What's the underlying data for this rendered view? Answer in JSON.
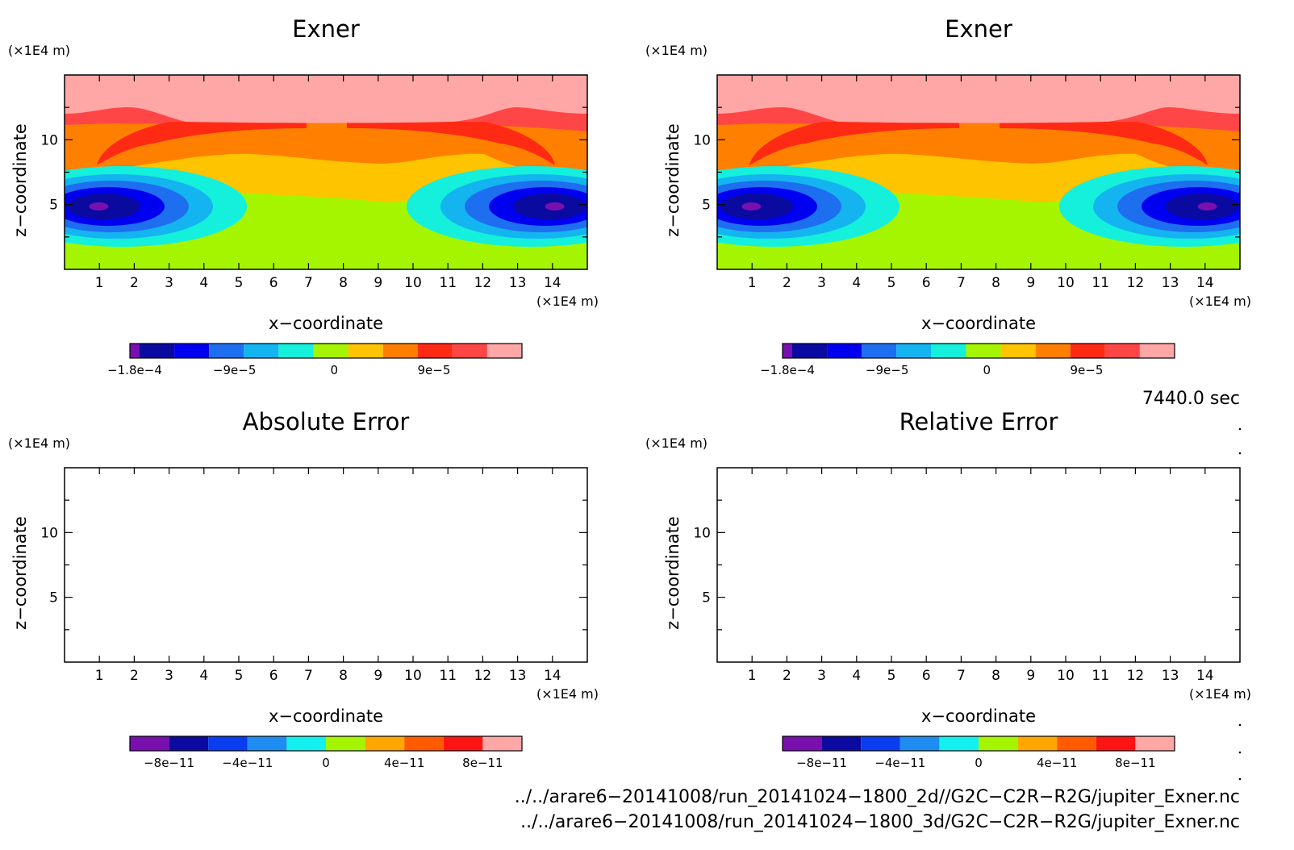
{
  "chart_data": [
    {
      "type": "heatmap",
      "title": "Exner",
      "xlabel": "x−coordinate",
      "ylabel": "z−coordinate",
      "x_unit": "(×1E4 m)",
      "y_unit": "(×1E4 m)",
      "xlim": [
        0,
        15
      ],
      "ylim": [
        0,
        15
      ],
      "x_ticks": [
        "1",
        "2",
        "3",
        "4",
        "5",
        "6",
        "7",
        "8",
        "9",
        "10",
        "11",
        "12",
        "13",
        "14"
      ],
      "y_ticks": [
        "5",
        "10"
      ],
      "colorbar": {
        "range": [
          -0.00018,
          0.000165
        ],
        "tick_labels": [
          "−1.8e−4",
          "−9e−5",
          "0",
          "9e−5"
        ],
        "tick_values": [
          -0.00018,
          -9e-05,
          0,
          9e-05
        ],
        "colors": [
          "#7a0fb0",
          "#0a0aa0",
          "#0000f0",
          "#1e6ef0",
          "#14b4f0",
          "#14f0dc",
          "#a6f500",
          "#ffc400",
          "#ff8000",
          "#ff2a14",
          "#ff4646",
          "#ffa6a6"
        ]
      },
      "field_layers": [
        {
          "level": "top",
          "color": "#ffa6a6"
        },
        {
          "level": "upper",
          "color": "#ff4646"
        },
        {
          "level": "upper-mid",
          "color": "#ff2a14"
        },
        {
          "level": "mid",
          "color": "#ff8000"
        },
        {
          "level": "lower-mid",
          "color": "#ffc400"
        },
        {
          "level": "low",
          "color": "#a6f500"
        },
        {
          "level": "vortex",
          "colors": [
            "#14f0dc",
            "#14b4f0",
            "#1e6ef0",
            "#0000f0",
            "#0a0aa0",
            "#7a0fb0"
          ]
        }
      ]
    },
    {
      "type": "heatmap",
      "title": "Exner",
      "xlabel": "x−coordinate",
      "ylabel": "z−coordinate",
      "x_unit": "(×1E4 m)",
      "y_unit": "(×1E4 m)",
      "xlim": [
        0,
        15
      ],
      "ylim": [
        0,
        15
      ],
      "x_ticks": [
        "1",
        "2",
        "3",
        "4",
        "5",
        "6",
        "7",
        "8",
        "9",
        "10",
        "11",
        "12",
        "13",
        "14"
      ],
      "y_ticks": [
        "5",
        "10"
      ],
      "colorbar": {
        "range": [
          -0.00018,
          0.000165
        ],
        "tick_labels": [
          "−1.8e−4",
          "−9e−5",
          "0",
          "9e−5"
        ],
        "tick_values": [
          -0.00018,
          -9e-05,
          0,
          9e-05
        ],
        "colors": [
          "#7a0fb0",
          "#0a0aa0",
          "#0000f0",
          "#1e6ef0",
          "#14b4f0",
          "#14f0dc",
          "#a6f500",
          "#ffc400",
          "#ff8000",
          "#ff2a14",
          "#ff4646",
          "#ffa6a6"
        ]
      }
    },
    {
      "type": "heatmap",
      "title": "Absolute Error",
      "xlabel": "x−coordinate",
      "ylabel": "z−coordinate",
      "x_unit": "(×1E4 m)",
      "y_unit": "(×1E4 m)",
      "xlim": [
        0,
        15
      ],
      "ylim": [
        0,
        15
      ],
      "x_ticks": [
        "1",
        "2",
        "3",
        "4",
        "5",
        "6",
        "7",
        "8",
        "9",
        "10",
        "11",
        "12",
        "13",
        "14"
      ],
      "y_ticks": [
        "5",
        "10"
      ],
      "colorbar": {
        "range": [
          -1e-10,
          1e-10
        ],
        "tick_labels": [
          "−8e−11",
          "−4e−11",
          "0",
          "4e−11",
          "8e−11"
        ],
        "tick_values": [
          -8e-11,
          -4e-11,
          0,
          4e-11,
          8e-11
        ],
        "colors": [
          "#7a0fb0",
          "#0a0aa0",
          "#0a3cf0",
          "#1e8cf0",
          "#14f0f0",
          "#a6f500",
          "#ffa600",
          "#ff5a00",
          "#ff1414",
          "#ffa6a6"
        ]
      },
      "field": "empty"
    },
    {
      "type": "heatmap",
      "title": "Relative Error",
      "xlabel": "x−coordinate",
      "ylabel": "z−coordinate",
      "x_unit": "(×1E4 m)",
      "y_unit": "(×1E4 m)",
      "xlim": [
        0,
        15
      ],
      "ylim": [
        0,
        15
      ],
      "x_ticks": [
        "1",
        "2",
        "3",
        "4",
        "5",
        "6",
        "7",
        "8",
        "9",
        "10",
        "11",
        "12",
        "13",
        "14"
      ],
      "y_ticks": [
        "5",
        "10"
      ],
      "colorbar": {
        "range": [
          -1e-10,
          1e-10
        ],
        "tick_labels": [
          "−8e−11",
          "−4e−11",
          "0",
          "4e−11",
          "8e−11"
        ],
        "tick_values": [
          -8e-11,
          -4e-11,
          0,
          4e-11,
          8e-11
        ],
        "colors": [
          "#7a0fb0",
          "#0a0aa0",
          "#0a3cf0",
          "#1e8cf0",
          "#14f0f0",
          "#a6f500",
          "#ffa600",
          "#ff5a00",
          "#ff1414",
          "#ffa6a6"
        ]
      },
      "field": "empty"
    }
  ],
  "time_label": "7440.0 sec",
  "file_paths": [
    "../../arare6−20141008/run_20141024−1800_2d//G2C−C2R−R2G/jupiter_Exner.nc",
    "../../arare6−20141008/run_20141024−1800_3d/G2C−C2R−R2G/jupiter_Exner.nc"
  ]
}
